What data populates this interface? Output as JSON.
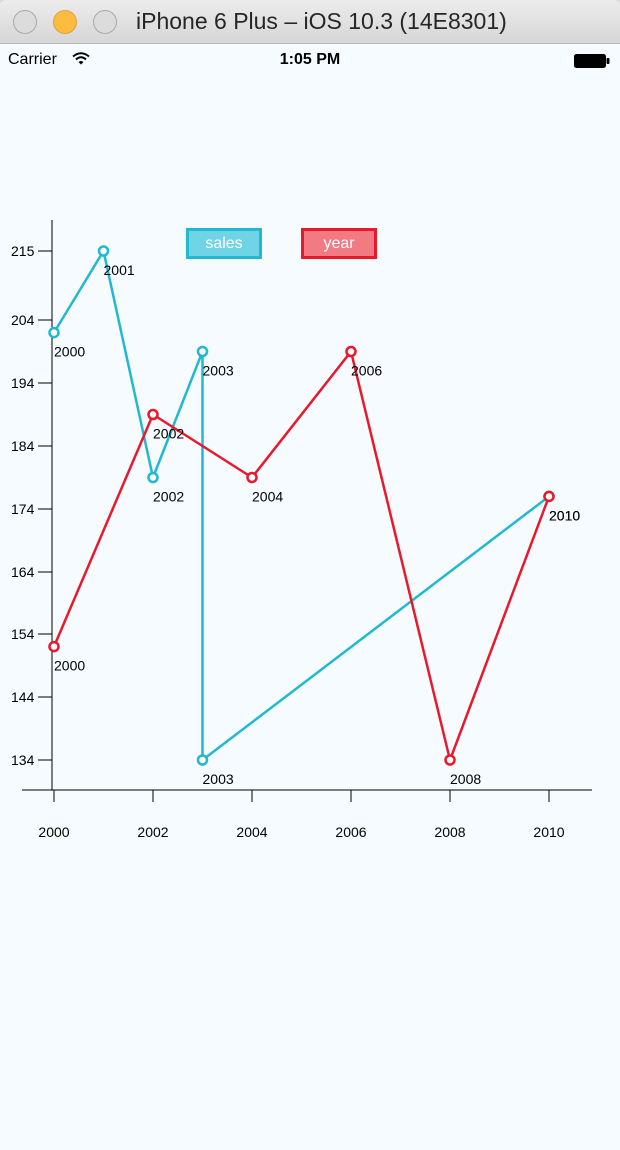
{
  "window": {
    "title": "iPhone 6 Plus – iOS 10.3 (14E8301)"
  },
  "status_bar": {
    "carrier": "Carrier",
    "time": "1:05 PM"
  },
  "colors": {
    "sales": "#22b8d0",
    "year": "#e8192c"
  },
  "chart_data": {
    "type": "line",
    "legend": [
      "sales",
      "year"
    ],
    "x_ticks": [
      2000,
      2002,
      2004,
      2006,
      2008,
      2010
    ],
    "y_ticks": [
      134,
      144,
      154,
      164,
      174,
      184,
      194,
      204,
      215
    ],
    "xlim": [
      2000,
      2010
    ],
    "series": [
      {
        "name": "sales",
        "points": [
          {
            "x": 2000,
            "y": 202,
            "label": "2000"
          },
          {
            "x": 2001,
            "y": 215,
            "label": "2001"
          },
          {
            "x": 2002,
            "y": 179,
            "label": "2002"
          },
          {
            "x": 2003,
            "y": 199,
            "label": "2003"
          },
          {
            "x": 2003,
            "y": 134,
            "label": "2003"
          },
          {
            "x": 2010,
            "y": 176,
            "label": "2010"
          }
        ]
      },
      {
        "name": "year",
        "points": [
          {
            "x": 2000,
            "y": 152,
            "label": "2000"
          },
          {
            "x": 2002,
            "y": 189,
            "label": "2002"
          },
          {
            "x": 2004,
            "y": 179,
            "label": "2004"
          },
          {
            "x": 2006,
            "y": 199,
            "label": "2006"
          },
          {
            "x": 2008,
            "y": 134,
            "label": "2008"
          },
          {
            "x": 2010,
            "y": 176,
            "label": "2010"
          }
        ]
      }
    ]
  }
}
